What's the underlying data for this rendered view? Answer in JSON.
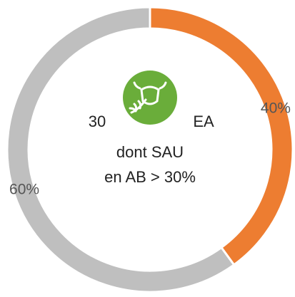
{
  "chart_data": {
    "type": "donut",
    "values": [
      40,
      60
    ],
    "value_labels": [
      "40%",
      "60%"
    ],
    "colors": [
      "#ed7d31",
      "#bfbfbf"
    ],
    "annotations": [
      "30",
      "EA",
      "dont SAU",
      "en AB > 30%"
    ]
  }
}
